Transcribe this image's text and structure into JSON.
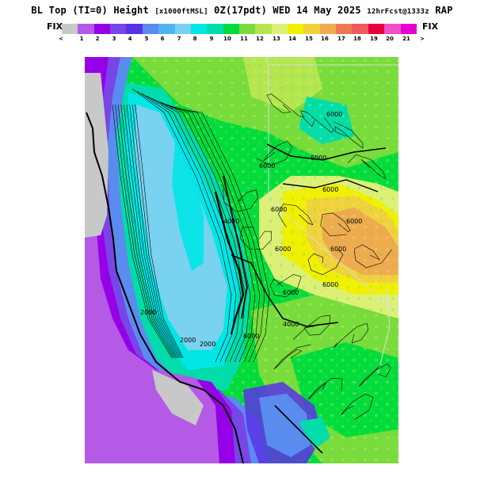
{
  "title": {
    "main": "BL Top (TI=0) Height",
    "units": "[x1000ftMSL]",
    "valid": "0Z(17pdt) WED 14 May 2025",
    "forecast": "12hrFcst@1333z",
    "model": "RAP"
  },
  "colorbar": {
    "left_label": "FIX",
    "right_label": "FIX",
    "colors": [
      "#c8c8c8",
      "#b45ae6",
      "#9600e6",
      "#7846e6",
      "#5a32e6",
      "#5a8cf0",
      "#50b4f0",
      "#78d2f0",
      "#00e6e6",
      "#00dcaa",
      "#00dc3c",
      "#78dc3c",
      "#b4e650",
      "#dcf078",
      "#f0f000",
      "#f0d23c",
      "#f0aa50",
      "#f07850",
      "#f05a5a",
      "#e6003c",
      "#f050c8",
      "#e600d2"
    ],
    "ticks": [
      "<",
      "1",
      "2",
      "3",
      "4",
      "5",
      "6",
      "7",
      "8",
      "9",
      "10",
      "11",
      "12",
      "13",
      "14",
      "15",
      "16",
      "17",
      "18",
      "19",
      "20",
      "21",
      ">"
    ]
  },
  "map": {
    "contour_labels": [
      "6000",
      "6000",
      "6000",
      "6000",
      "6000",
      "6000",
      "6000",
      "6000",
      "6000",
      "6000",
      "6000",
      "2000",
      "4000",
      "4000",
      "2000",
      "2000"
    ]
  }
}
